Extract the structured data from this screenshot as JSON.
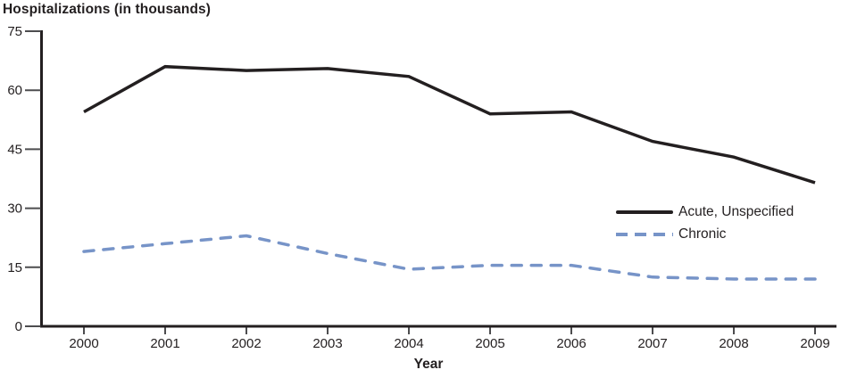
{
  "title": "Hospitalizations (in thousands)",
  "x_axis_title": "Year",
  "colors": {
    "acute_line": "#231f20",
    "chronic_line": "#7794c8",
    "axis": "#231f20",
    "tick": "#4d4d4f",
    "text": "#231f20",
    "background": "#ffffff"
  },
  "chart_data": {
    "type": "line",
    "title": "Hospitalizations (in thousands)",
    "xlabel": "Year",
    "ylabel": "Hospitalizations (in thousands)",
    "categories": [
      "2000",
      "2001",
      "2002",
      "2003",
      "2004",
      "2005",
      "2006",
      "2007",
      "2008",
      "2009"
    ],
    "series": [
      {
        "id": "acute-unspecified",
        "name": "Acute, Unspecified",
        "color": "#231f20",
        "dash": "solid",
        "values": [
          54.5,
          66,
          65,
          65.5,
          63.5,
          54,
          54.5,
          47,
          43,
          36.5
        ]
      },
      {
        "id": "chronic",
        "name": "Chronic",
        "color": "#7794c8",
        "dash": "dashed",
        "values": [
          19,
          21,
          23,
          18.5,
          14.5,
          15.5,
          15.5,
          12.5,
          12,
          12
        ]
      }
    ],
    "ylim": [
      0,
      75
    ],
    "yticks": [
      0,
      15,
      30,
      45,
      60,
      75
    ],
    "grid": false,
    "legend_position": "right-middle"
  }
}
